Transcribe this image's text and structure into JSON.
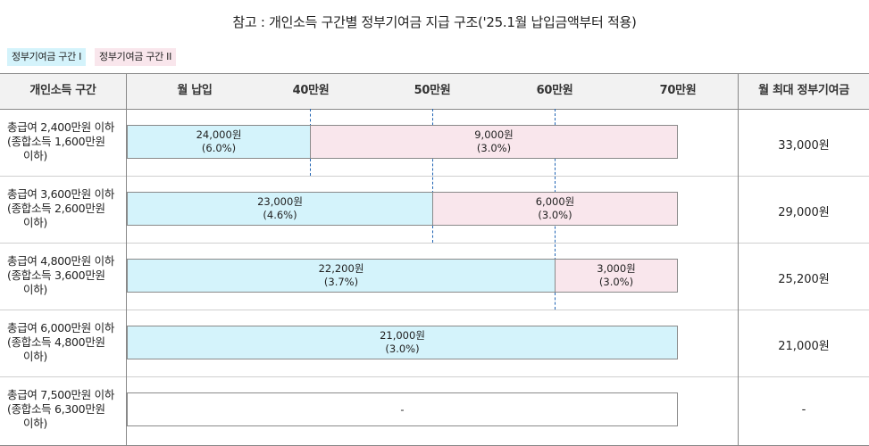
{
  "title": "참고 : 개인소득 구간별 정부기여금 지급 구조('25.1월 납입금액부터 적용)",
  "legend": {
    "tier1": "정부기여금 구간 I",
    "tier2": "정부기여금 구간 II"
  },
  "header": {
    "income": "개인소득 구간",
    "monthly": "월 납입",
    "t40": "40만원",
    "t50": "50만원",
    "t60": "60만원",
    "t70": "70만원",
    "max": "월 최대 정부기여금"
  },
  "rows": [
    {
      "line1": "총급여 2,400만원 이하",
      "line2": "(종합소득 1,600만원",
      "line3": "이하)",
      "seg1_amount": "24,000원",
      "seg1_rate": "(6.0%)",
      "seg2_amount": "9,000원",
      "seg2_rate": "(3.0%)",
      "max": "33,000원"
    },
    {
      "line1": "총급여 3,600만원 이하",
      "line2": "(종합소득 2,600만원",
      "line3": "이하)",
      "seg1_amount": "23,000원",
      "seg1_rate": "(4.6%)",
      "seg2_amount": "6,000원",
      "seg2_rate": "(3.0%)",
      "max": "29,000원"
    },
    {
      "line1": "총급여 4,800만원 이하",
      "line2": "(종합소득 3,600만원",
      "line3": "이하)",
      "seg1_amount": "22,200원",
      "seg1_rate": "(3.7%)",
      "seg2_amount": "3,000원",
      "seg2_rate": "(3.0%)",
      "max": "25,200원"
    },
    {
      "line1": "총급여 6,000만원 이하",
      "line2": "(종합소득 4,800만원",
      "line3": "이하)",
      "seg1_amount": "21,000원",
      "seg1_rate": "(3.0%)",
      "max": "21,000원"
    },
    {
      "line1": "총급여 7,500만원 이하",
      "line2": "(종합소득 6,300만원",
      "line3": "이하)",
      "seg1_amount": "-",
      "max": "-"
    }
  ],
  "colors": {
    "tier1": "#d4f3fb",
    "tier2": "#f9e6ec",
    "divider": "#1f63b3"
  }
}
